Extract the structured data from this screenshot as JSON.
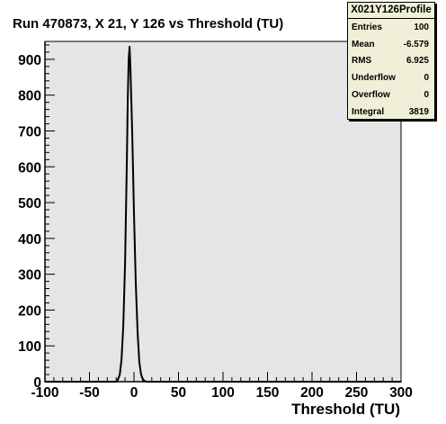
{
  "chart_data": {
    "type": "line",
    "title": "Run 470873, X 21, Y 126 vs Threshold (TU)",
    "xlabel": "Threshold (TU)",
    "ylabel": "",
    "xlim": [
      -100,
      300
    ],
    "ylim": [
      0,
      950
    ],
    "xticks": [
      "-100",
      "-50",
      "0",
      "50",
      "100",
      "150",
      "200",
      "250",
      "300"
    ],
    "yticks": [
      "0",
      "100",
      "200",
      "300",
      "400",
      "500",
      "600",
      "700",
      "800",
      "900"
    ],
    "grid": false,
    "plot_background": "#e5e5e5",
    "line_color": "#000000",
    "series": [
      {
        "x": [
          -100,
          -20,
          -18,
          -16,
          -14,
          -12,
          -10,
          -8,
          -7,
          -6,
          -5,
          -4,
          -2,
          0,
          2,
          4,
          6,
          8,
          10,
          12,
          14,
          300
        ],
        "y": [
          0,
          0,
          6,
          20,
          60,
          155,
          330,
          620,
          790,
          900,
          935,
          880,
          700,
          470,
          275,
          140,
          55,
          20,
          6,
          2,
          0,
          0
        ]
      }
    ]
  },
  "stats": {
    "name": "X021Y126Profile",
    "entries": [
      {
        "label": "Entries",
        "value": "100"
      },
      {
        "label": "Mean",
        "value": "-6.579"
      },
      {
        "label": "RMS",
        "value": "6.925"
      },
      {
        "label": "Underflow",
        "value": "0"
      },
      {
        "label": "Overflow",
        "value": "0"
      },
      {
        "label": "Integral",
        "value": "3819"
      }
    ]
  }
}
